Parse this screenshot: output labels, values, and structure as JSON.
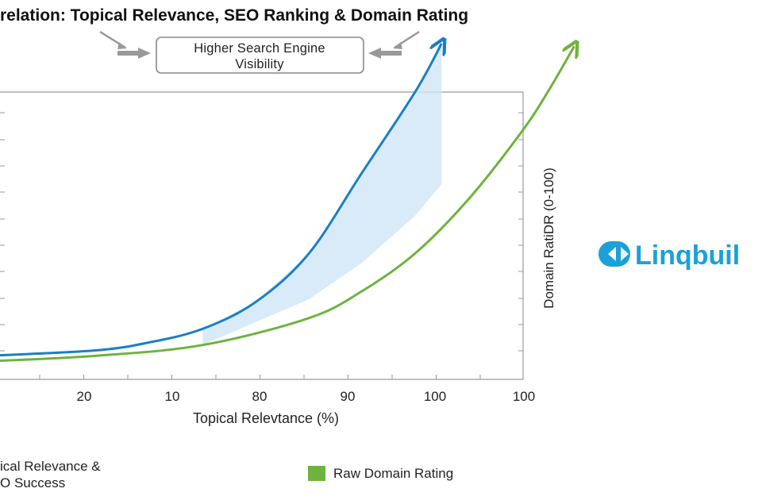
{
  "chart_data": {
    "type": "line",
    "title": "relation: Topical Relevance, SEO Ranking & Domain Rating",
    "annotation": [
      "Higher Search Engine",
      "Visibility"
    ],
    "xlabel": "Topical Relevtance (%)",
    "ylabel": "Domain RatiDR (0-100)",
    "x_tick_labels": [
      "20",
      "10",
      "80",
      "90",
      "100",
      "100"
    ],
    "grid": false,
    "legend": [
      {
        "label": [
          "ical Relevance &",
          "O Success"
        ],
        "color": "#1b7fc4"
      },
      {
        "label": [
          "Raw Domain Rating"
        ],
        "color": "#6db33f"
      }
    ],
    "series": [
      {
        "color": "#1b7fc4",
        "points": [
          [
            0,
            2
          ],
          [
            20,
            4
          ],
          [
            30,
            7
          ],
          [
            40,
            12
          ],
          [
            50,
            22
          ],
          [
            60,
            40
          ],
          [
            70,
            70
          ],
          [
            80,
            100
          ],
          [
            85,
            118
          ]
        ]
      },
      {
        "name": "Raw Domain Rating",
        "color": "#6db33f",
        "points": [
          [
            0,
            0
          ],
          [
            20,
            2
          ],
          [
            40,
            6
          ],
          [
            60,
            16
          ],
          [
            70,
            26
          ],
          [
            80,
            40
          ],
          [
            90,
            60
          ],
          [
            100,
            85
          ],
          [
            105,
            100
          ],
          [
            110,
            117
          ]
        ]
      }
    ],
    "shaded_band": {
      "between": [
        0,
        1
      ],
      "from_x": 40,
      "to_x": 85,
      "color": "#cfe6f8"
    },
    "xlim": [
      0,
      105
    ],
    "ylim": [
      0,
      100
    ]
  },
  "brand": {
    "name": "Linqbuil"
  }
}
